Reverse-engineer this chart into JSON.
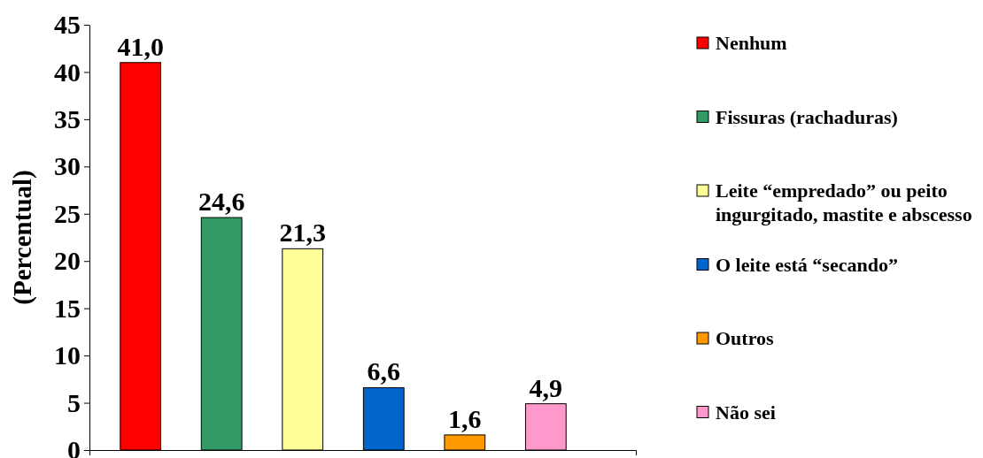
{
  "chart_data": {
    "type": "bar",
    "categories": [
      null
    ],
    "ylabel": "(Percentual)",
    "ylim": [
      0,
      45
    ],
    "yticks": [
      0,
      5,
      10,
      15,
      20,
      25,
      30,
      35,
      40,
      45
    ],
    "legend": "right",
    "series": [
      {
        "name": "Nenhum",
        "color": "#ff0000",
        "values": [
          41.0
        ],
        "value_labels": [
          "41,0"
        ]
      },
      {
        "name": "Fissuras (rachaduras)",
        "color": "#339966",
        "values": [
          24.6
        ],
        "value_labels": [
          "24,6"
        ]
      },
      {
        "name": "Leite “empredado” ou peito ingurgitado, mastite e abscesso",
        "color": "#ffff99",
        "values": [
          21.3
        ],
        "value_labels": [
          "21,3"
        ]
      },
      {
        "name": "O leite está “secando”",
        "color": "#0066cc",
        "values": [
          6.6
        ],
        "value_labels": [
          "6,6"
        ]
      },
      {
        "name": "Outros",
        "color": "#ff9900",
        "values": [
          1.6
        ],
        "value_labels": [
          "1,6"
        ]
      },
      {
        "name": "Não sei",
        "color": "#ff99cc",
        "values": [
          4.9
        ],
        "value_labels": [
          "4,9"
        ]
      }
    ]
  }
}
